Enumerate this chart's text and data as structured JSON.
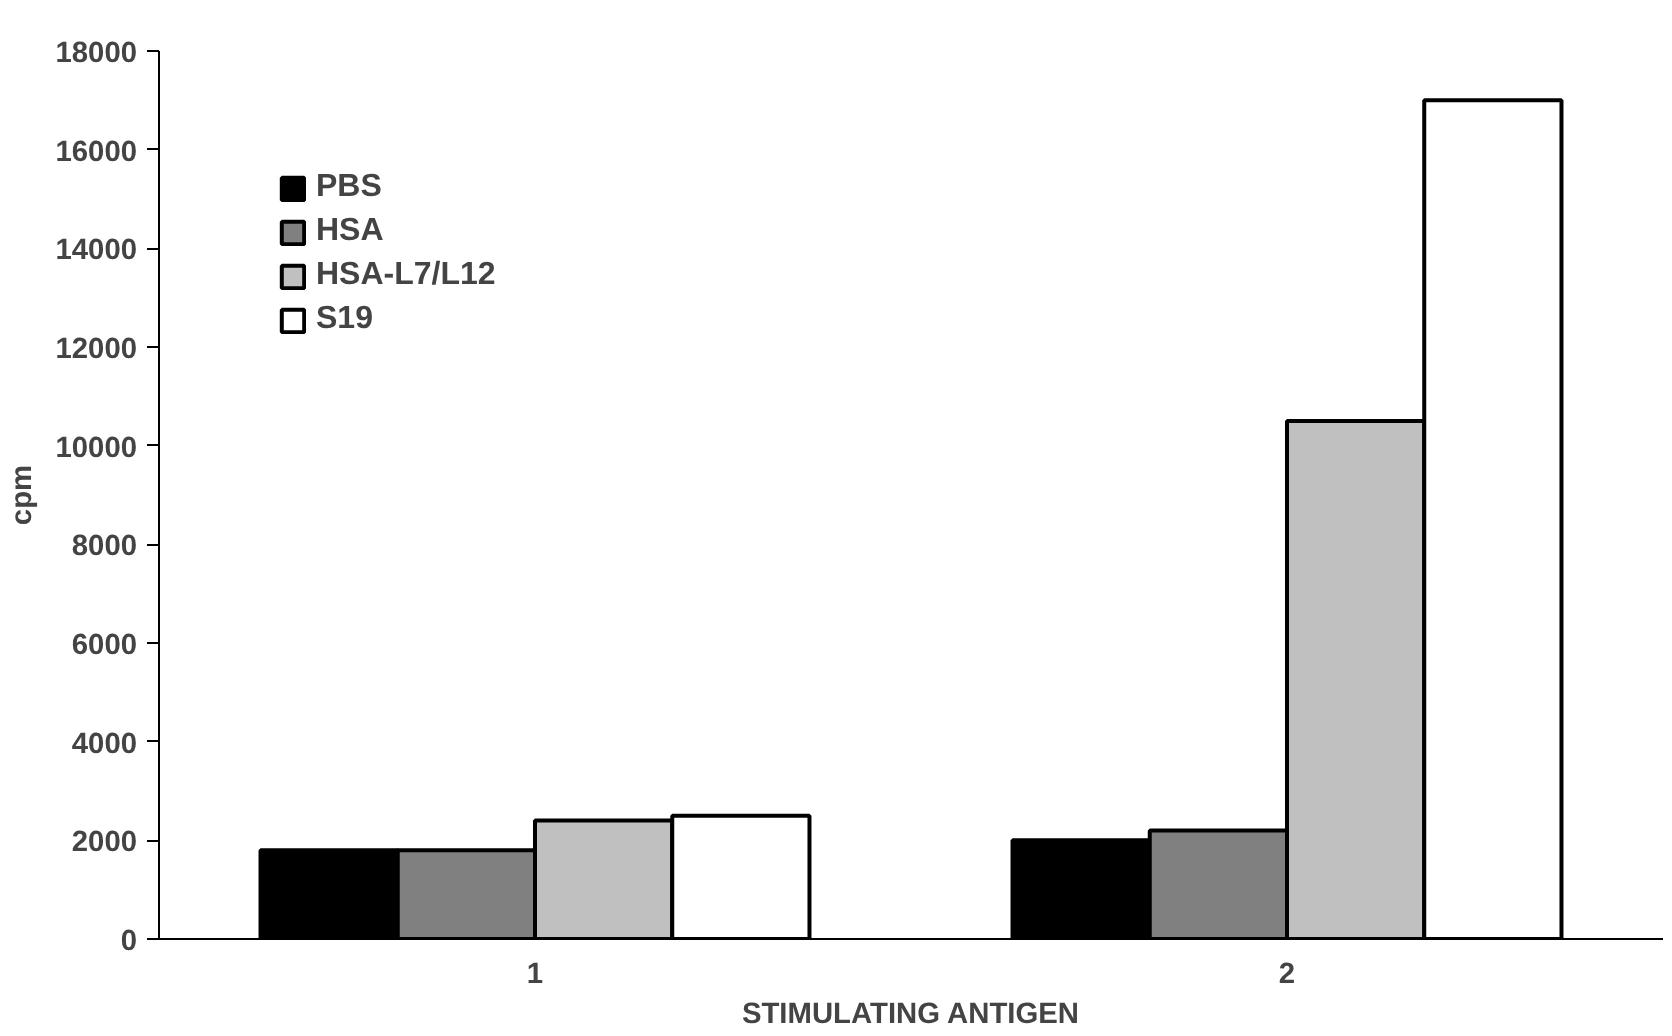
{
  "chart_data": {
    "type": "bar",
    "xlabel": "STIMULATING ANTIGEN",
    "ylabel": "cpm",
    "categories": [
      "1",
      "2"
    ],
    "series": [
      {
        "name": "PBS",
        "color": "#000000",
        "values": [
          1800,
          2000
        ]
      },
      {
        "name": "HSA",
        "color": "#808080",
        "values": [
          1800,
          2200
        ]
      },
      {
        "name": "HSA-L7/L12",
        "color": "#c0c0c0",
        "values": [
          2400,
          10500
        ]
      },
      {
        "name": "S19",
        "color": "#ffffff",
        "values": [
          2500,
          17000
        ]
      }
    ],
    "ylim": [
      0,
      18000
    ],
    "yticks": [
      0,
      2000,
      4000,
      6000,
      8000,
      10000,
      12000,
      14000,
      16000,
      18000
    ],
    "grid": false,
    "legend": "top left"
  }
}
